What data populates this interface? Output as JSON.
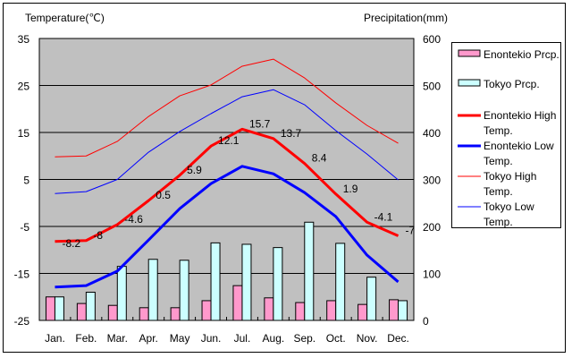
{
  "chart_data": {
    "type": "bar+line",
    "title": "",
    "ylabel_left": "Temperature(℃)",
    "ylabel_right": "Precipitation(mm)",
    "ylim_left": [
      -25,
      35
    ],
    "ylim_right": [
      0,
      600
    ],
    "yticks_left": [
      "35",
      "25",
      "15",
      "5",
      "-5",
      "-15",
      "-25"
    ],
    "yticks_right": [
      "600",
      "500",
      "400",
      "300",
      "200",
      "100",
      "0"
    ],
    "grid": true,
    "legend_position": "right",
    "categories": [
      "Jan.",
      "Feb.",
      "Mar.",
      "Apr.",
      "May",
      "Jun.",
      "Jul.",
      "Aug.",
      "Sep.",
      "Oct.",
      "Nov.",
      "Dec."
    ],
    "series": [
      {
        "name": "Enontekio Prcp.",
        "type": "bar",
        "axis": "right",
        "color": "#ff99cc",
        "values": [
          50,
          36,
          32,
          27,
          27,
          42,
          74,
          48,
          38,
          42,
          34,
          44
        ]
      },
      {
        "name": "Tokyo Prcp.",
        "type": "bar",
        "axis": "right",
        "color": "#ccffff",
        "values": [
          50,
          60,
          115,
          130,
          128,
          165,
          162,
          155,
          209,
          164,
          92,
          42
        ]
      },
      {
        "name": "Enontekio High Temp.",
        "type": "line",
        "axis": "left",
        "color": "#ff0000",
        "width": "thick",
        "values": [
          -8.2,
          -8,
          -4.6,
          0.5,
          5.9,
          12.1,
          15.7,
          13.7,
          8.4,
          1.9,
          -4.1,
          -7
        ],
        "labels": [
          "-8.2",
          "-8",
          "-4.6",
          "0.5",
          "5.9",
          "12.1",
          "15.7",
          "13.7",
          "8.4",
          "1.9",
          "-4.1",
          "-7"
        ]
      },
      {
        "name": "Enontekio Low Temp.",
        "type": "line",
        "axis": "left",
        "color": "#0000ff",
        "width": "thick",
        "values": [
          -17.9,
          -17.6,
          -14.5,
          -7.9,
          -1.2,
          4.1,
          7.8,
          6.2,
          2.2,
          -2.9,
          -11.1,
          -16.8
        ]
      },
      {
        "name": "Tokyo High Temp.",
        "type": "line",
        "axis": "left",
        "color": "#ff0000",
        "width": "thin",
        "values": [
          9.8,
          10.0,
          13.1,
          18.4,
          22.8,
          25.1,
          29.1,
          30.6,
          26.6,
          21.3,
          16.5,
          12.7
        ]
      },
      {
        "name": "Tokyo Low Temp.",
        "type": "line",
        "axis": "left",
        "color": "#0000ff",
        "width": "thin",
        "values": [
          2.0,
          2.4,
          5.0,
          10.8,
          15.2,
          19.0,
          22.6,
          24.1,
          20.9,
          15.4,
          10.4,
          4.9
        ]
      }
    ]
  },
  "legend": [
    {
      "label": "Enontekio Prcp."
    },
    {
      "label": "Tokyo Prcp."
    },
    {
      "label": "Enontekio High Temp."
    },
    {
      "label": "Enontekio Low Temp."
    },
    {
      "label": "Tokyo High Temp."
    },
    {
      "label": "Tokyo Low Temp."
    }
  ]
}
